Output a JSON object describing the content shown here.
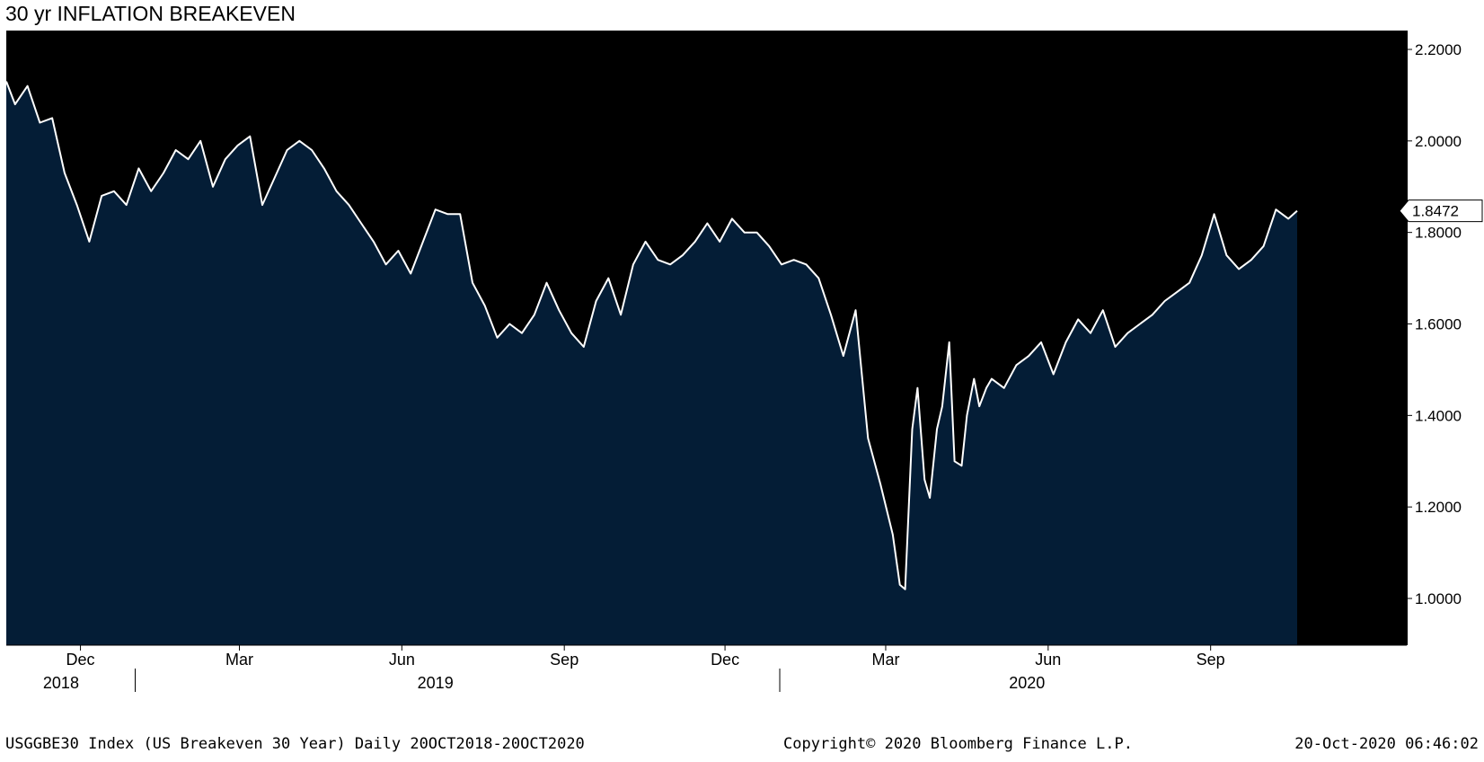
{
  "chart_data": {
    "type": "area",
    "title": "30 yr INFLATION BREAKEVEN",
    "ylim": [
      0.9,
      2.25
    ],
    "yticks": [
      "2.2000",
      "2.0000",
      "1.8000",
      "1.6000",
      "1.4000",
      "1.2000",
      "1.0000"
    ],
    "ytick_values": [
      2.2,
      2.0,
      1.8,
      1.6,
      1.4,
      1.2,
      1.0
    ],
    "last_value_label": "1.8472",
    "last_value": 1.8472,
    "x_month_ticks": [
      {
        "label": "Dec",
        "date": "2018-12-01"
      },
      {
        "label": "Mar",
        "date": "2019-03-01"
      },
      {
        "label": "Jun",
        "date": "2019-06-01"
      },
      {
        "label": "Sep",
        "date": "2019-09-01"
      },
      {
        "label": "Dec",
        "date": "2019-12-01"
      },
      {
        "label": "Mar",
        "date": "2020-03-01"
      },
      {
        "label": "Jun",
        "date": "2020-06-01"
      },
      {
        "label": "Sep",
        "date": "2020-09-01"
      }
    ],
    "x_year_labels": [
      {
        "label": "2018",
        "date": "2018-11-20"
      },
      {
        "label": "2019",
        "date": "2019-06-20"
      },
      {
        "label": "2020",
        "date": "2020-05-20"
      }
    ],
    "x_year_separators": [
      "2019-01-01",
      "2020-01-01"
    ],
    "xlim": [
      "2018-10-20",
      "2020-10-20"
    ],
    "series": [
      {
        "line_color": "#ffffff",
        "fill_color": "#041d36",
        "x": [
          "2018-10-20",
          "2018-10-25",
          "2018-11-01",
          "2018-11-08",
          "2018-11-15",
          "2018-11-22",
          "2018-11-29",
          "2018-12-06",
          "2018-12-13",
          "2018-12-20",
          "2018-12-27",
          "2019-01-03",
          "2019-01-10",
          "2019-01-17",
          "2019-01-24",
          "2019-01-31",
          "2019-02-07",
          "2019-02-14",
          "2019-02-21",
          "2019-02-28",
          "2019-03-07",
          "2019-03-14",
          "2019-03-21",
          "2019-03-28",
          "2019-04-04",
          "2019-04-11",
          "2019-04-18",
          "2019-04-25",
          "2019-05-02",
          "2019-05-09",
          "2019-05-16",
          "2019-05-23",
          "2019-05-30",
          "2019-06-06",
          "2019-06-13",
          "2019-06-20",
          "2019-06-27",
          "2019-07-04",
          "2019-07-11",
          "2019-07-18",
          "2019-07-25",
          "2019-08-01",
          "2019-08-08",
          "2019-08-15",
          "2019-08-22",
          "2019-08-29",
          "2019-09-05",
          "2019-09-12",
          "2019-09-19",
          "2019-09-26",
          "2019-10-03",
          "2019-10-10",
          "2019-10-17",
          "2019-10-24",
          "2019-10-31",
          "2019-11-07",
          "2019-11-14",
          "2019-11-21",
          "2019-11-28",
          "2019-12-05",
          "2019-12-12",
          "2019-12-19",
          "2019-12-26",
          "2020-01-02",
          "2020-01-09",
          "2020-01-16",
          "2020-01-23",
          "2020-01-30",
          "2020-02-06",
          "2020-02-13",
          "2020-02-20",
          "2020-02-27",
          "2020-03-05",
          "2020-03-09",
          "2020-03-12",
          "2020-03-16",
          "2020-03-19",
          "2020-03-23",
          "2020-03-26",
          "2020-03-30",
          "2020-04-02",
          "2020-04-06",
          "2020-04-09",
          "2020-04-13",
          "2020-04-16",
          "2020-04-20",
          "2020-04-23",
          "2020-04-27",
          "2020-04-30",
          "2020-05-07",
          "2020-05-14",
          "2020-05-21",
          "2020-05-28",
          "2020-06-04",
          "2020-06-11",
          "2020-06-18",
          "2020-06-25",
          "2020-07-02",
          "2020-07-09",
          "2020-07-16",
          "2020-07-23",
          "2020-07-30",
          "2020-08-06",
          "2020-08-13",
          "2020-08-20",
          "2020-08-27",
          "2020-09-03",
          "2020-09-10",
          "2020-09-17",
          "2020-09-24",
          "2020-10-01",
          "2020-10-08",
          "2020-10-15",
          "2020-10-20"
        ],
        "y": [
          2.13,
          2.08,
          2.12,
          2.04,
          2.05,
          1.93,
          1.86,
          1.78,
          1.88,
          1.89,
          1.86,
          1.94,
          1.89,
          1.93,
          1.98,
          1.96,
          2.0,
          1.9,
          1.96,
          1.99,
          2.01,
          1.86,
          1.92,
          1.98,
          2.0,
          1.98,
          1.94,
          1.89,
          1.86,
          1.82,
          1.78,
          1.73,
          1.76,
          1.71,
          1.78,
          1.85,
          1.84,
          1.84,
          1.69,
          1.64,
          1.57,
          1.6,
          1.58,
          1.62,
          1.69,
          1.63,
          1.58,
          1.55,
          1.65,
          1.7,
          1.62,
          1.73,
          1.78,
          1.74,
          1.73,
          1.75,
          1.78,
          1.82,
          1.78,
          1.83,
          1.8,
          1.8,
          1.77,
          1.73,
          1.74,
          1.73,
          1.7,
          1.62,
          1.53,
          1.63,
          1.35,
          1.25,
          1.14,
          1.03,
          1.02,
          1.37,
          1.46,
          1.26,
          1.22,
          1.37,
          1.42,
          1.56,
          1.3,
          1.29,
          1.4,
          1.48,
          1.42,
          1.46,
          1.48,
          1.46,
          1.51,
          1.53,
          1.56,
          1.49,
          1.56,
          1.61,
          1.58,
          1.63,
          1.55,
          1.58,
          1.6,
          1.62,
          1.65,
          1.67,
          1.69,
          1.75,
          1.84,
          1.75,
          1.72,
          1.74,
          1.77,
          1.85,
          1.83,
          1.8472
        ]
      }
    ]
  },
  "footer": {
    "left": "USGGBE30 Index (US Breakeven 30 Year)  Daily 20OCT2018-20OCT2020",
    "center": "Copyright© 2020 Bloomberg Finance L.P.",
    "right": "20-Oct-2020 06:46:02"
  }
}
